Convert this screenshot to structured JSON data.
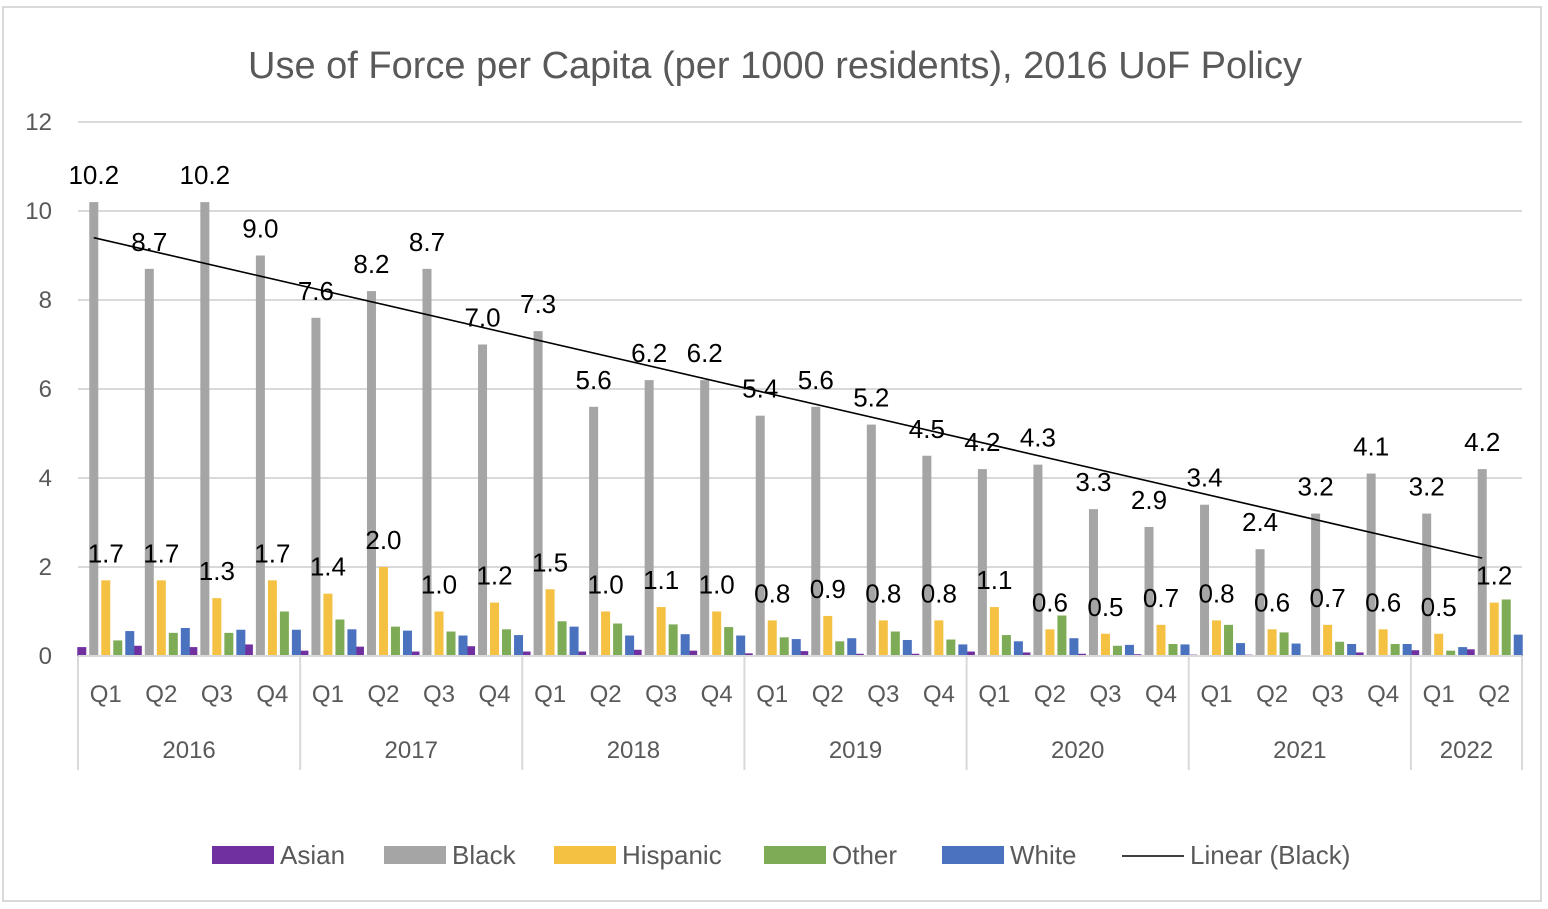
{
  "chart_data": {
    "type": "bar",
    "title": "Use of Force per Capita (per 1000 residents), 2016 UoF Policy",
    "xlabel": "",
    "ylabel": "",
    "ylim": [
      0,
      12
    ],
    "yticks": [
      0,
      2,
      4,
      6,
      8,
      10,
      12
    ],
    "grid": true,
    "legend_position": "bottom",
    "groups": [
      {
        "year": "2016",
        "quarters": [
          "Q1",
          "Q2",
          "Q3",
          "Q4"
        ]
      },
      {
        "year": "2017",
        "quarters": [
          "Q1",
          "Q2",
          "Q3",
          "Q4"
        ]
      },
      {
        "year": "2018",
        "quarters": [
          "Q1",
          "Q2",
          "Q3",
          "Q4"
        ]
      },
      {
        "year": "2019",
        "quarters": [
          "Q1",
          "Q2",
          "Q3",
          "Q4"
        ]
      },
      {
        "year": "2020",
        "quarters": [
          "Q1",
          "Q2",
          "Q3",
          "Q4"
        ]
      },
      {
        "year": "2021",
        "quarters": [
          "Q1",
          "Q2",
          "Q3",
          "Q4"
        ]
      },
      {
        "year": "2022",
        "quarters": [
          "Q1",
          "Q2"
        ]
      }
    ],
    "series": [
      {
        "name": "Asian",
        "color": "#7030a0",
        "labeled": false,
        "values": [
          0.2,
          0.23,
          0.2,
          0.26,
          0.12,
          0.21,
          0.1,
          0.22,
          0.1,
          0.1,
          0.14,
          0.12,
          0.06,
          0.11,
          0.05,
          0.05,
          0.1,
          0.08,
          0.05,
          0.04,
          0.03,
          0.03,
          0.02,
          0.08,
          0.13,
          0.15
        ]
      },
      {
        "name": "Black",
        "color": "#a5a5a5",
        "labeled": true,
        "values": [
          10.2,
          8.7,
          10.2,
          9.0,
          7.6,
          8.2,
          8.7,
          7.0,
          7.3,
          5.6,
          6.2,
          6.2,
          5.4,
          5.6,
          5.2,
          4.5,
          4.2,
          4.3,
          3.3,
          2.9,
          3.4,
          2.4,
          3.2,
          4.1,
          3.2,
          4.2
        ]
      },
      {
        "name": "Hispanic",
        "color": "#f4c142",
        "labeled": true,
        "values": [
          1.7,
          1.7,
          1.3,
          1.7,
          1.4,
          2.0,
          1.0,
          1.2,
          1.5,
          1.0,
          1.1,
          1.0,
          0.8,
          0.9,
          0.8,
          0.8,
          1.1,
          0.6,
          0.5,
          0.7,
          0.8,
          0.6,
          0.7,
          0.6,
          0.5,
          1.2
        ]
      },
      {
        "name": "Other",
        "color": "#7eab55",
        "labeled": false,
        "values": [
          0.35,
          0.52,
          0.52,
          1.0,
          0.82,
          0.66,
          0.55,
          0.6,
          0.78,
          0.73,
          0.71,
          0.65,
          0.42,
          0.33,
          0.55,
          0.37,
          0.47,
          0.91,
          0.23,
          0.27,
          0.7,
          0.53,
          0.32,
          0.27,
          0.12,
          1.27
        ]
      },
      {
        "name": "White",
        "color": "#4a72be",
        "labeled": false,
        "values": [
          0.56,
          0.63,
          0.59,
          0.59,
          0.6,
          0.57,
          0.46,
          0.47,
          0.66,
          0.46,
          0.49,
          0.46,
          0.38,
          0.4,
          0.36,
          0.26,
          0.33,
          0.4,
          0.25,
          0.26,
          0.29,
          0.28,
          0.27,
          0.27,
          0.2,
          0.48
        ]
      }
    ],
    "trendline": {
      "name": "Linear (Black)",
      "series": "Black",
      "type": "linear",
      "color": "#000000",
      "start_value": 9.4,
      "end_value": 2.2
    },
    "legend": [
      "Asian",
      "Black",
      "Hispanic",
      "Other",
      "White",
      "Linear (Black)"
    ]
  }
}
